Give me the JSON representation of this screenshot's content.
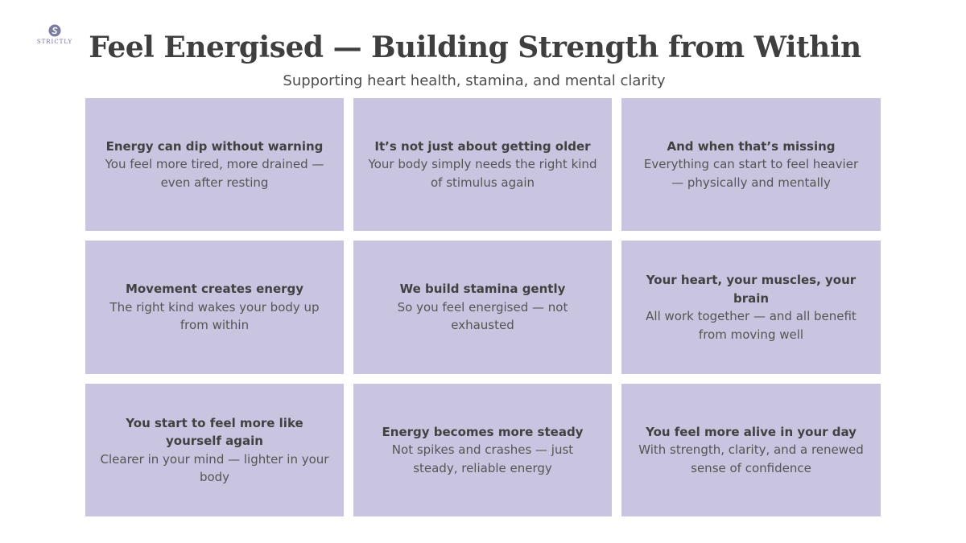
{
  "logo": {
    "text": "STRICTLY",
    "accent_color": "#6e6e96"
  },
  "header": {
    "title": "Feel Energised — Building Strength from Within",
    "subtitle": "Supporting heart health, stamina, and mental clarity"
  },
  "colors": {
    "card_background": "#c9c4e0",
    "title_text": "#3f3f3f",
    "body_text": "#555555"
  },
  "cards": [
    {
      "title": "Energy can dip without warning",
      "body": "You feel more tired, more drained — even after resting"
    },
    {
      "title": "It’s not just about getting older",
      "body": "Your body simply needs the right kind of stimulus again"
    },
    {
      "title": "And when that’s missing",
      "body": "Everything can start to feel heavier — physically and mentally"
    },
    {
      "title": "Movement creates energy",
      "body": "The right kind wakes your body up from within"
    },
    {
      "title": "We build stamina gently",
      "body": "So you feel energised — not exhausted"
    },
    {
      "title": "Your heart, your muscles, your brain",
      "body": "All work together — and all benefit from moving well"
    },
    {
      "title": "You start to feel more like yourself again",
      "body": "Clearer in your mind — lighter in your body"
    },
    {
      "title": "Energy becomes more steady",
      "body": "Not spikes and crashes — just steady, reliable energy"
    },
    {
      "title": "You feel more alive in your day",
      "body": "With strength, clarity, and a renewed sense of confidence"
    }
  ]
}
